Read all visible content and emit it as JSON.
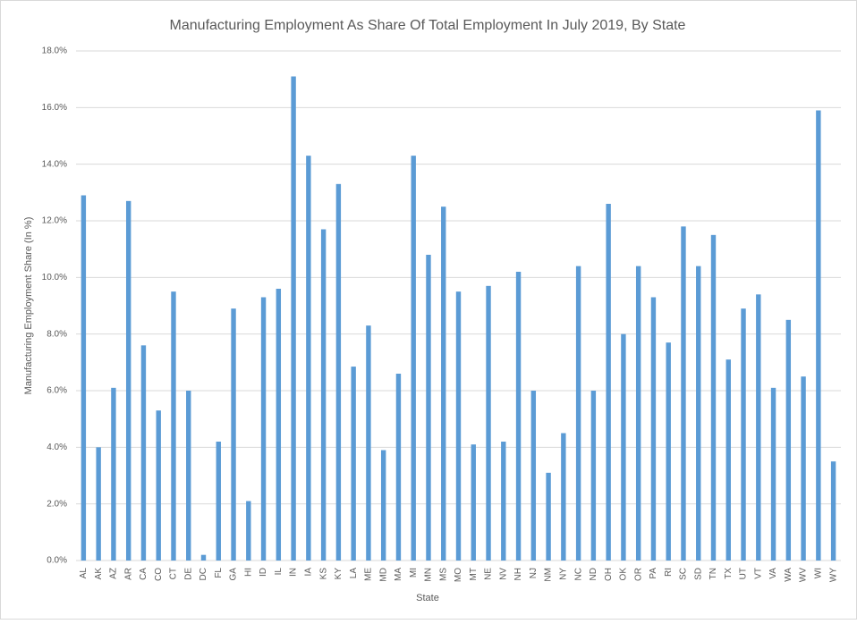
{
  "chart_data": {
    "type": "bar",
    "title": "Manufacturing Employment As Share Of Total Employment In July 2019, By State",
    "x_label": "State",
    "y_label": "Manufacturing Employment Share (In %)",
    "categories": [
      "AL",
      "AK",
      "AZ",
      "AR",
      "CA",
      "CO",
      "CT",
      "DE",
      "DC",
      "FL",
      "GA",
      "HI",
      "ID",
      "IL",
      "IN",
      "IA",
      "KS",
      "KY",
      "LA",
      "ME",
      "MD",
      "MA",
      "MI",
      "MN",
      "MS",
      "MO",
      "MT",
      "NE",
      "NV",
      "NH",
      "NJ",
      "NM",
      "NY",
      "NC",
      "ND",
      "OH",
      "OK",
      "OR",
      "PA",
      "RI",
      "SC",
      "SD",
      "TN",
      "TX",
      "UT",
      "VT",
      "VA",
      "WA",
      "WV",
      "WI",
      "WY"
    ],
    "values": [
      12.9,
      4.0,
      6.1,
      12.7,
      7.6,
      5.3,
      9.5,
      6.0,
      0.2,
      4.2,
      8.9,
      2.1,
      9.3,
      9.6,
      17.1,
      14.3,
      11.7,
      13.3,
      6.85,
      8.3,
      3.9,
      6.6,
      14.3,
      10.8,
      12.5,
      9.5,
      4.1,
      9.7,
      4.2,
      10.2,
      6.0,
      3.1,
      4.5,
      10.4,
      6.0,
      12.6,
      8.0,
      10.4,
      9.3,
      7.7,
      11.8,
      10.4,
      11.5,
      7.1,
      8.9,
      9.4,
      6.1,
      8.5,
      6.5,
      15.9,
      3.5
    ],
    "color": "#5b9bd5",
    "ylim": [
      0,
      18
    ],
    "yticks": [
      {
        "value": 0,
        "label": "0.0%"
      },
      {
        "value": 2,
        "label": "2.0%"
      },
      {
        "value": 4,
        "label": "4.0%"
      },
      {
        "value": 6,
        "label": "6.0%"
      },
      {
        "value": 8,
        "label": "8.0%"
      },
      {
        "value": 10,
        "label": "10.0%"
      },
      {
        "value": 12,
        "label": "12.0%"
      },
      {
        "value": 14,
        "label": "14.0%"
      },
      {
        "value": 16,
        "label": "16.0%"
      },
      {
        "value": 18,
        "label": "18.0%"
      }
    ],
    "grid": true
  }
}
